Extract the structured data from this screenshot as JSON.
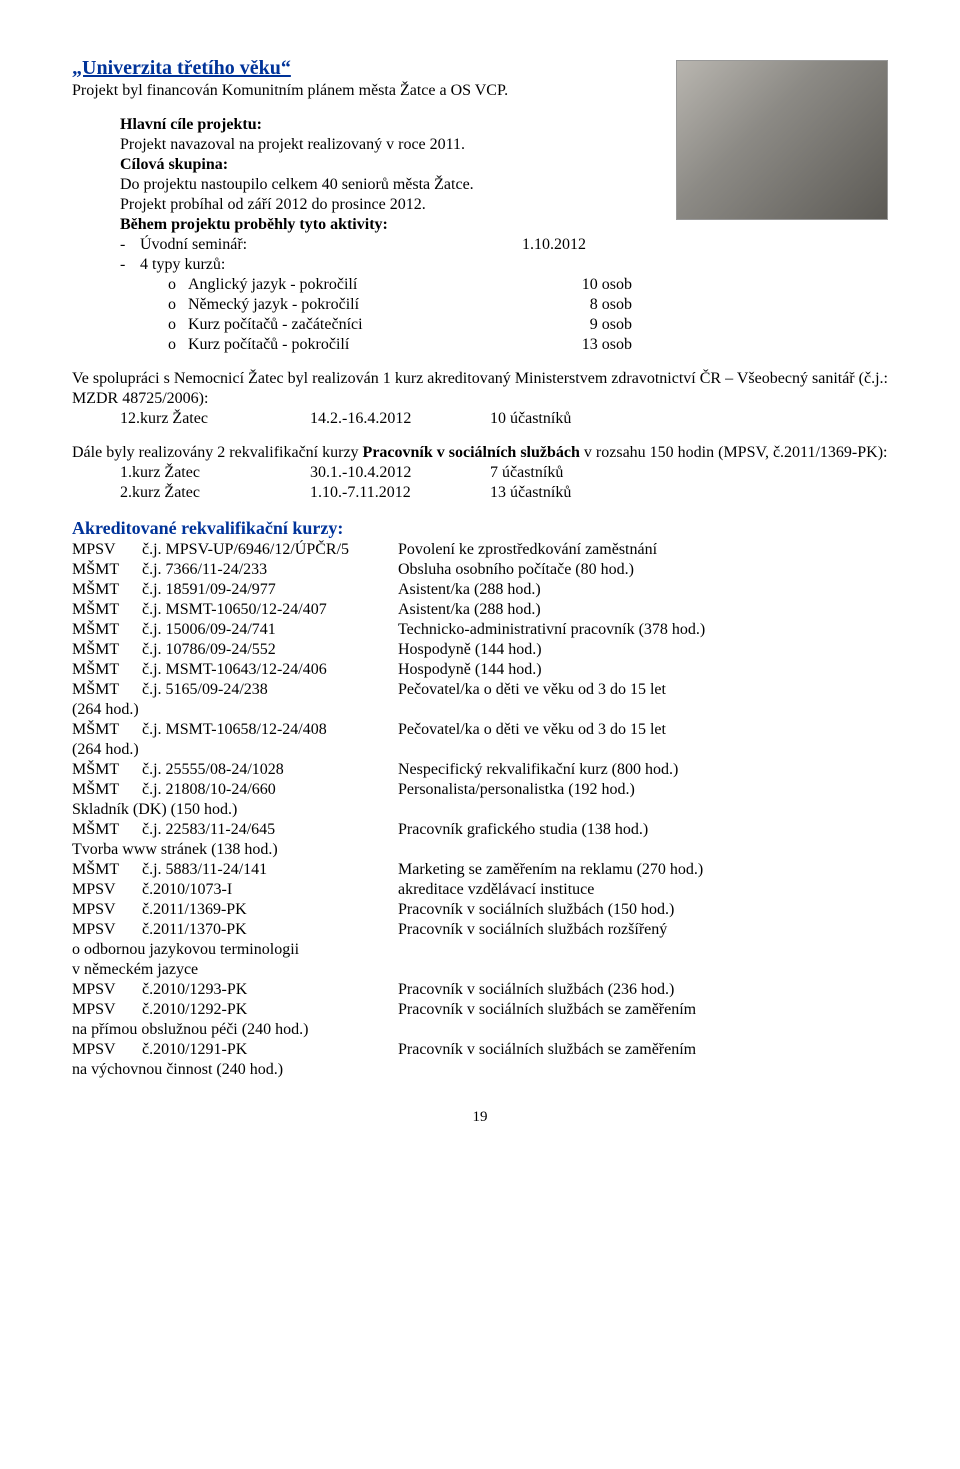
{
  "header": {
    "title": "„Univerzita třetího věku“",
    "subtitle": "Projekt byl financován Komunitním plánem města Žatce a OS VCP."
  },
  "goals": {
    "heading": "Hlavní cíle projektu:",
    "line": "Projekt navazoval na projekt realizovaný v roce 2011."
  },
  "target": {
    "heading": "Cílová skupina:",
    "line": "Do projektu nastoupilo celkem 40 seniorů města Žatce.",
    "period": "Projekt probíhal od září 2012 do prosince 2012."
  },
  "activities": {
    "heading": "Během projektu proběhly tyto aktivity:",
    "items": [
      {
        "dash": "-",
        "label": "Úvodní seminář:",
        "value": "1.10.2012"
      },
      {
        "dash": "-",
        "label": "4 typy kurzů:",
        "value": ""
      }
    ],
    "courses": [
      {
        "sym": "o",
        "label": "Anglický jazyk - pokročilí",
        "value": "10 osob"
      },
      {
        "sym": "o",
        "label": "Německý jazyk - pokročilí",
        "value": "8 osob"
      },
      {
        "sym": "o",
        "label": "Kurz počítačů - začátečníci",
        "value": "9 osob"
      },
      {
        "sym": "o",
        "label": "Kurz počítačů - pokročilí",
        "value": "13 osob"
      }
    ]
  },
  "coop": {
    "para": "Ve spolupráci s Nemocnicí Žatec byl realizován 1 kurz akreditovaný Ministerstvem zdravotnictví ČR – Všeobecný sanitář (č.j.: MZDR 48725/2006):",
    "row": {
      "c1": "12.kurz Žatec",
      "c2": "14.2.-16.4.2012",
      "c3": "10 účastníků"
    }
  },
  "rekval": {
    "para_pre": "Dále byly realizovány 2 rekvalifikační kurzy ",
    "para_bold": "Pracovník v sociálních službách",
    "para_post": " v rozsahu 150 hodin (MPSV, č.2011/1369-PK):",
    "rows": [
      {
        "c1": "1.kurz Žatec",
        "c2": "30.1.-10.4.2012",
        "c3": "7 účastníků"
      },
      {
        "c1": "2.kurz Žatec",
        "c2": "1.10.-7.11.2012",
        "c3": "13 účastníků"
      }
    ]
  },
  "akk": {
    "heading": "Akreditované rekvalifikační kurzy:",
    "rows": [
      {
        "a1": "MPSV",
        "a2": "č.j. MPSV-UP/6946/12/ÚPČR/5",
        "a3": "Povolení ke zprostředkování zaměstnání"
      },
      {
        "a1": "MŠMT",
        "a2": "č.j. 7366/11-24/233",
        "a3": "Obsluha osobního počítače (80 hod.)"
      },
      {
        "a1": "MŠMT",
        "a2": "č.j. 18591/09-24/977",
        "a3": "Asistent/ka (288 hod.)"
      },
      {
        "a1": "MŠMT",
        "a2": "č.j. MSMT-10650/12-24/407",
        "a3": "Asistent/ka (288 hod.)"
      },
      {
        "a1": "MŠMT",
        "a2": "č.j. 15006/09-24/741",
        "a3": "Technicko-administrativní pracovník (378 hod.)"
      },
      {
        "a1": "MŠMT",
        "a2": "č.j. 10786/09-24/552",
        "a3": "Hospodyně (144 hod.)"
      },
      {
        "a1": "MŠMT",
        "a2": "č.j. MSMT-10643/12-24/406",
        "a3": "Hospodyně (144 hod.)"
      },
      {
        "a1": "MŠMT",
        "a2": "č.j. 5165/09-24/238",
        "a3": "Pečovatel/ka o děti ve věku od 3 do 15 let",
        "a3b": "(264 hod.)"
      },
      {
        "a1": "MŠMT",
        "a2": "č.j. MSMT-10658/12-24/408",
        "a3": "Pečovatel/ka o děti ve věku od 3 do 15 let",
        "a3b": "(264 hod.)"
      },
      {
        "a1": "MŠMT",
        "a2": "č.j. 25555/08-24/1028",
        "a3": "Nespecifický rekvalifikační kurz (800 hod.)"
      },
      {
        "a1": "MŠMT",
        "a2": "č.j. 21808/10-24/660",
        "a3": "Personalista/personalistka (192 hod.)",
        "a3b": "Skladník (DK) (150 hod.)"
      },
      {
        "a1": "MŠMT",
        "a2": "č.j. 22583/11-24/645",
        "a3": "Pracovník grafického studia (138 hod.)",
        "a3b": "Tvorba www stránek (138 hod.)"
      },
      {
        "a1": "MŠMT",
        "a2": "č.j. 5883/11-24/141",
        "a3": "Marketing se zaměřením na reklamu (270 hod.)"
      },
      {
        "a1": "MPSV",
        "a2": "č.2010/1073-I",
        "a3": "akreditace vzdělávací instituce"
      },
      {
        "a1": "MPSV",
        "a2": "č.2011/1369-PK",
        "a3": "Pracovník v sociálních službách (150 hod.)"
      },
      {
        "a1": "MPSV",
        "a2": "č.2011/1370-PK",
        "a3": "Pracovník v sociálních službách rozšířený",
        "a3b": "o odbornou jazykovou terminologii",
        "a3c": "v německém jazyce"
      },
      {
        "a1": "MPSV",
        "a2": "č.2010/1293-PK",
        "a3": "Pracovník v sociálních službách (236 hod.)"
      },
      {
        "a1": "MPSV",
        "a2": "č.2010/1292-PK",
        "a3": "Pracovník v sociálních službách se zaměřením",
        "a3b": "na přímou obslužnou péči (240 hod.)"
      },
      {
        "a1": "MPSV",
        "a2": "č.2010/1291-PK",
        "a3": "Pracovník v sociálních službách se zaměřením",
        "a3b": "na výchovnou činnost (240 hod.)"
      }
    ]
  },
  "page": "19"
}
